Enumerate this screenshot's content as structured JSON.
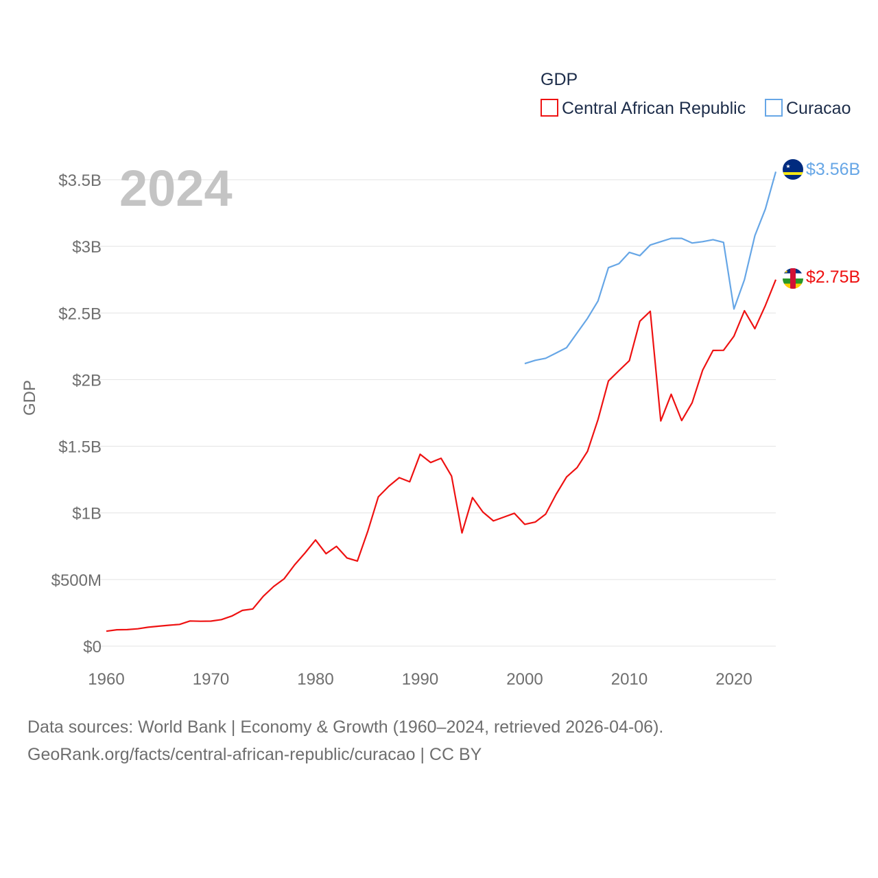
{
  "chart_data": {
    "type": "line",
    "title": "",
    "xlabel": "",
    "ylabel": "GDP",
    "xlim": [
      1960,
      2024
    ],
    "ylim": [
      0,
      3700000000
    ],
    "grid": true,
    "year_watermark": "2024",
    "legend": {
      "title": "GDP",
      "placement": "top-right"
    },
    "x_ticks": [
      {
        "value": 1960,
        "label": "1960"
      },
      {
        "value": 1970,
        "label": "1970"
      },
      {
        "value": 1980,
        "label": "1980"
      },
      {
        "value": 1990,
        "label": "1990"
      },
      {
        "value": 2000,
        "label": "2000"
      },
      {
        "value": 2010,
        "label": "2010"
      },
      {
        "value": 2020,
        "label": "2020"
      }
    ],
    "y_ticks": [
      {
        "value": 0,
        "label": "$0"
      },
      {
        "value": 500000000,
        "label": "$500M"
      },
      {
        "value": 1000000000,
        "label": "$1B"
      },
      {
        "value": 1500000000,
        "label": "$1.5B"
      },
      {
        "value": 2000000000,
        "label": "$2B"
      },
      {
        "value": 2500000000,
        "label": "$2.5B"
      },
      {
        "value": 3000000000,
        "label": "$3B"
      },
      {
        "value": 3500000000,
        "label": "$3.5B"
      }
    ],
    "series": [
      {
        "name": "Central African Republic",
        "color": "#ee1111",
        "end_label": "$2.75B",
        "flag_icon": "central-african-republic-flag-icon",
        "x": [
          1960,
          1961,
          1962,
          1963,
          1964,
          1965,
          1966,
          1967,
          1968,
          1969,
          1970,
          1971,
          1972,
          1973,
          1974,
          1975,
          1976,
          1977,
          1978,
          1979,
          1980,
          1981,
          1982,
          1983,
          1984,
          1985,
          1986,
          1987,
          1988,
          1989,
          1990,
          1991,
          1992,
          1993,
          1994,
          1995,
          1996,
          1997,
          1998,
          1999,
          2000,
          2001,
          2002,
          2003,
          2004,
          2005,
          2006,
          2007,
          2008,
          2009,
          2010,
          2011,
          2012,
          2013,
          2014,
          2015,
          2016,
          2017,
          2018,
          2019,
          2020,
          2021,
          2022,
          2023,
          2024
        ],
        "values": [
          112000000,
          123000000,
          124000000,
          130000000,
          142000000,
          150000000,
          157000000,
          163000000,
          189000000,
          187000000,
          188000000,
          199000000,
          226000000,
          268000000,
          279000000,
          374000000,
          448000000,
          506000000,
          610000000,
          700000000,
          797000000,
          694000000,
          749000000,
          662000000,
          639000000,
          864000000,
          1120000000,
          1200000000,
          1264000000,
          1233000000,
          1440000000,
          1378000000,
          1410000000,
          1276000000,
          850000000,
          1115000000,
          1006000000,
          940000000,
          968000000,
          997000000,
          914000000,
          931000000,
          991000000,
          1140000000,
          1270000000,
          1340000000,
          1462000000,
          1700000000,
          1990000000,
          2067000000,
          2142000000,
          2438000000,
          2513000000,
          1690000000,
          1890000000,
          1693000000,
          1826000000,
          2070000000,
          2219000000,
          2220000000,
          2326000000,
          2517000000,
          2382000000,
          2556000000,
          2750000000
        ]
      },
      {
        "name": "Curacao",
        "color": "#66a6e6",
        "end_label": "$3.56B",
        "flag_icon": "curacao-flag-icon",
        "x": [
          2000,
          2001,
          2002,
          2003,
          2004,
          2005,
          2006,
          2007,
          2008,
          2009,
          2010,
          2011,
          2012,
          2013,
          2014,
          2015,
          2016,
          2017,
          2018,
          2019,
          2020,
          2021,
          2022,
          2023,
          2024
        ],
        "values": [
          2120000000,
          2145000000,
          2160000000,
          2200000000,
          2240000000,
          2350000000,
          2460000000,
          2590000000,
          2840000000,
          2870000000,
          2955000000,
          2930000000,
          3010000000,
          3035000000,
          3060000000,
          3060000000,
          3025000000,
          3035000000,
          3050000000,
          3030000000,
          2530000000,
          2750000000,
          3080000000,
          3280000000,
          3560000000
        ]
      }
    ]
  },
  "footer": {
    "line1": "Data sources: World Bank | Economy & Growth (1960–2024, retrieved 2026-04-06).",
    "line2": "GeoRank.org/facts/central-african-republic/curacao | CC BY"
  }
}
